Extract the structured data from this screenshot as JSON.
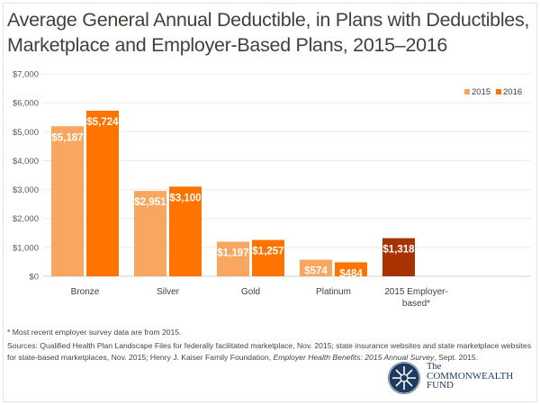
{
  "title": "Average General Annual Deductible, in Plans with Deductibles, Marketplace and Employer-Based Plans, 2015–2016",
  "chart_data": {
    "type": "bar",
    "title": "Average General Annual Deductible, in Plans with Deductibles, Marketplace and Employer-Based Plans, 2015–2016",
    "categories": [
      "Bronze",
      "Silver",
      "Gold",
      "Platinum",
      "2015 Employer-based*"
    ],
    "category_lines": [
      [
        "Bronze"
      ],
      [
        "Silver"
      ],
      [
        "Gold"
      ],
      [
        "Platinum"
      ],
      [
        "2015 Employer-",
        "based*"
      ]
    ],
    "series": [
      {
        "name": "2015",
        "color": "#F9A660",
        "values": [
          5187,
          2951,
          1197,
          574,
          null
        ],
        "labels": [
          "$5,187",
          "$2,951",
          "$1,197",
          "$574",
          null
        ]
      },
      {
        "name": "2016",
        "color": "#FF7300",
        "values": [
          5724,
          3100,
          1257,
          484,
          null
        ],
        "labels": [
          "$5,724",
          "$3,100",
          "$1,257",
          "$484",
          null
        ]
      },
      {
        "color": "#A83300",
        "values": [
          null,
          null,
          null,
          null,
          1318
        ],
        "labels": [
          null,
          null,
          null,
          null,
          "$1,318"
        ]
      }
    ],
    "ylim": [
      0,
      7000
    ],
    "yticks": [
      0,
      1000,
      2000,
      3000,
      4000,
      5000,
      6000,
      7000
    ],
    "ytick_labels": [
      "$0",
      "$1,000",
      "$2,000",
      "$3,000",
      "$4,000",
      "$5,000",
      "$6,000",
      "$7,000"
    ],
    "grid": true,
    "legend": "top-right",
    "xlabel": "",
    "ylabel": ""
  },
  "footnote": "* Most recent employer survey data are from 2015.",
  "sources": {
    "prefix": "Sources: Qualified Health Plan Landscape Files for federally facilitated marketplace, Nov. 2015; state insurance websites and state marketplace websites for state-based marketplaces, Nov. 2015; Henry J. Kaiser Family Foundation, ",
    "italic": "Employer Health Benefits: 2015 Annual Survey",
    "suffix": ", Sept. 2015."
  },
  "logo": {
    "line1": "The",
    "line2": "COMMONWEALTH",
    "line3": "FUND"
  }
}
